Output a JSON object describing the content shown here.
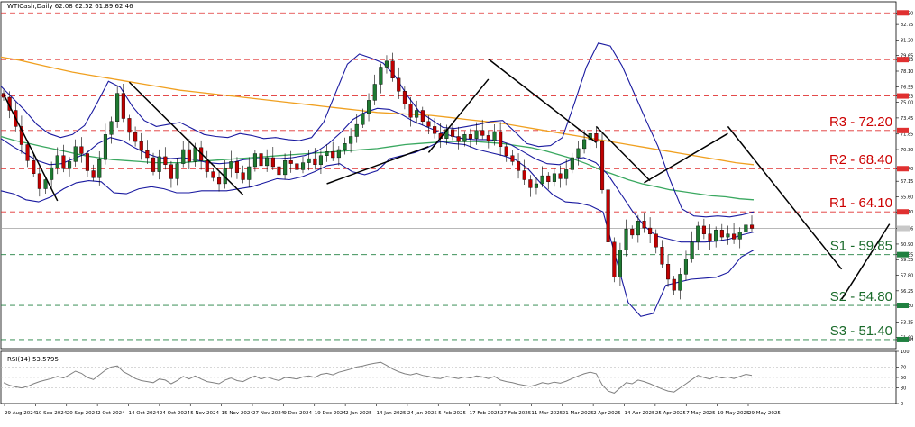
{
  "header": {
    "title": "WTICash,Daily",
    "ohlc": "62.08 62.52 61.89 62.46",
    "indicator": "RSI(14) 53.5795"
  },
  "colors": {
    "price_up": "#1f7a32",
    "price_down": "#c00000",
    "bollinger": "#1a1aa0",
    "ma_green": "#3aa860",
    "ma_orange": "#f0a020",
    "resistance_line": "#e03030",
    "support_line": "#208040",
    "rsi_line": "#808080",
    "trendline": "#000000",
    "last_price_line": "#a0a0a0"
  },
  "chart_data": [
    {
      "type": "candlestick",
      "symbol": "WTICash",
      "timeframe": "Daily",
      "y_axis_ticks": [
        "83.90",
        "82.75",
        "81.20",
        "79.65",
        "79.25",
        "78.10",
        "76.55",
        "75.63",
        "75.00",
        "73.45",
        "71.85",
        "70.30",
        "68.40",
        "67.15",
        "65.60",
        "64.10",
        "62.46",
        "60.90",
        "59.85",
        "59.35",
        "57.80",
        "56.25",
        "54.80",
        "53.15",
        "51.60",
        "51.40"
      ],
      "ylim": [
        50.5,
        85.0
      ],
      "x_tick_labels": [
        "29 Aug 2024",
        "10 Sep 2024",
        "20 Sep 2024",
        "2 Oct 2024",
        "14 Oct 2024",
        "24 Oct 2024",
        "5 Nov 2024",
        "15 Nov 2024",
        "27 Nov 2024",
        "9 Dec 2024",
        "19 Dec 2024",
        "2 Jan 2025",
        "14 Jan 2025",
        "24 Jan 2025",
        "5 Feb 2025",
        "17 Feb 2025",
        "27 Feb 2025",
        "11 Mar 2025",
        "21 Mar 2025",
        "2 Apr 2025",
        "14 Apr 2025",
        "25 Apr 2025",
        "7 May 2025",
        "19 May 2025",
        "29 May 2025"
      ],
      "levels": [
        {
          "label": "R3 - 72.20",
          "value": 72.2,
          "kind": "resistance"
        },
        {
          "label": "R2 - 68.40",
          "value": 68.4,
          "kind": "resistance"
        },
        {
          "label": "R1 - 64.10",
          "value": 64.1,
          "kind": "resistance"
        },
        {
          "label": "S1 - 59.85",
          "value": 59.85,
          "kind": "support"
        },
        {
          "label": "S2 - 54.80",
          "value": 54.8,
          "kind": "support"
        },
        {
          "label": "S3 - 51.40",
          "value": 51.4,
          "kind": "support"
        }
      ],
      "extra_dashed_levels": [
        83.9,
        79.25,
        75.63
      ],
      "last_price": 62.46,
      "close_series": [
        75.5,
        74.2,
        72.6,
        70.8,
        69.2,
        67.9,
        66.4,
        67.3,
        68.5,
        69.7,
        68.4,
        69.1,
        70.6,
        69.9,
        68.2,
        67.5,
        69.3,
        71.8,
        73.1,
        75.9,
        73.4,
        72.0,
        71.1,
        70.2,
        69.5,
        68.1,
        69.6,
        68.8,
        67.4,
        68.9,
        70.3,
        69.1,
        70.5,
        69.2,
        68.1,
        67.5,
        66.9,
        68.4,
        69.1,
        68.0,
        67.3,
        68.6,
        69.9,
        68.7,
        69.5,
        68.6,
        67.8,
        69.2,
        68.9,
        68.3,
        69.0,
        69.4,
        68.8,
        69.7,
        70.1,
        69.5,
        70.3,
        70.9,
        71.6,
        72.8,
        73.9,
        75.2,
        76.8,
        78.5,
        79.1,
        77.4,
        76.1,
        74.8,
        73.5,
        74.2,
        73.1,
        72.6,
        71.9,
        71.4,
        72.3,
        71.6,
        71.1,
        71.8,
        71.4,
        72.2,
        71.7,
        71.2,
        72.1,
        70.6,
        69.7,
        69.1,
        68.2,
        67.3,
        66.5,
        66.9,
        67.7,
        67.1,
        67.9,
        67.4,
        68.3,
        69.5,
        70.4,
        71.3,
        71.9,
        71.1,
        66.3,
        61.1,
        57.6,
        60.3,
        62.4,
        61.8,
        63.2,
        62.5,
        61.9,
        60.6,
        58.9,
        57.4,
        56.3,
        57.9,
        59.4,
        61.1,
        62.7,
        61.9,
        61.2,
        62.3,
        61.6,
        61.9,
        61.4,
        62.1,
        62.8,
        62.46
      ],
      "sma_green_series": [
        71.6,
        71.2,
        70.9,
        70.6,
        70.3,
        70.0,
        69.7,
        69.5,
        69.3,
        69.2,
        69.1,
        69.0,
        69.0,
        69.0,
        69.1,
        69.2,
        69.3,
        69.4,
        69.5,
        69.6,
        69.7,
        69.8,
        69.9,
        70.0,
        70.1,
        70.2,
        70.3,
        70.4,
        70.6,
        70.8,
        70.9,
        71.0,
        71.1,
        71.1,
        71.1,
        71.0,
        70.9,
        70.7,
        70.5,
        70.2,
        69.8,
        69.4,
        68.9,
        68.3,
        67.8,
        67.3,
        66.9,
        66.6,
        66.3,
        66.1,
        65.9,
        65.7,
        65.6,
        65.4,
        65.3
      ],
      "sma_orange_series": [
        79.5,
        79.2,
        78.8,
        78.4,
        78.0,
        77.7,
        77.4,
        77.1,
        76.8,
        76.5,
        76.2,
        76.0,
        75.8,
        75.6,
        75.4,
        75.2,
        75.0,
        74.8,
        74.6,
        74.4,
        74.2,
        74.0,
        73.9,
        73.8,
        73.7,
        73.5,
        73.3,
        73.1,
        72.9,
        72.6,
        72.3,
        72.0,
        71.7,
        71.4,
        71.1,
        70.8,
        70.5,
        70.2,
        69.9,
        69.6,
        69.3,
        69.0,
        68.8
      ],
      "bollinger_upper_series": [
        76.6,
        75.4,
        74.2,
        72.8,
        71.9,
        71.5,
        71.8,
        72.7,
        74.8,
        77.1,
        76.5,
        74.6,
        73.2,
        72.6,
        72.8,
        73.0,
        72.4,
        71.8,
        71.6,
        71.5,
        71.9,
        71.7,
        71.4,
        71.5,
        71.3,
        71.2,
        71.5,
        73.0,
        75.9,
        78.8,
        79.8,
        79.4,
        78.9,
        77.6,
        75.7,
        74.1,
        73.3,
        72.5,
        72.4,
        72.6,
        72.8,
        73.1,
        73.2,
        72.1,
        70.9,
        70.6,
        70.7,
        71.5,
        74.9,
        78.5,
        80.9,
        80.6,
        78.6,
        75.9,
        73.2,
        70.6,
        67.3,
        64.4,
        63.7,
        63.6,
        63.7,
        63.6,
        63.8,
        64.1
      ],
      "bollinger_mid_series": [
        71.4,
        70.6,
        69.9,
        69.2,
        68.8,
        68.9,
        69.4,
        69.9,
        70.9,
        71.5,
        71.2,
        70.5,
        69.9,
        69.5,
        69.4,
        69.5,
        69.3,
        69.0,
        68.9,
        69.0,
        69.3,
        69.4,
        69.4,
        69.4,
        69.5,
        69.7,
        70.1,
        70.9,
        72.0,
        73.3,
        74.0,
        74.4,
        74.3,
        73.8,
        73.1,
        72.6,
        72.1,
        71.7,
        71.4,
        71.3,
        71.3,
        71.2,
        70.8,
        70.1,
        69.4,
        68.9,
        68.8,
        69.3,
        69.5,
        69.0,
        67.8,
        66.0,
        64.2,
        62.7,
        61.7,
        61.4,
        61.1,
        61.1,
        61.1,
        61.2,
        61.4,
        61.8,
        62.1
      ],
      "bollinger_lower_series": [
        66.2,
        65.9,
        65.3,
        65.1,
        65.6,
        66.4,
        67.0,
        67.2,
        67.1,
        66.0,
        65.9,
        66.4,
        66.6,
        66.4,
        66.0,
        66.0,
        66.2,
        66.2,
        66.2,
        66.4,
        66.6,
        67.0,
        67.4,
        67.3,
        67.6,
        68.1,
        68.7,
        68.9,
        68.1,
        67.8,
        68.2,
        69.4,
        69.7,
        70.0,
        70.5,
        71.1,
        70.9,
        70.8,
        70.3,
        70.0,
        69.7,
        69.3,
        68.4,
        67.0,
        65.8,
        65.1,
        65.0,
        64.7,
        64.1,
        59.6,
        55.1,
        53.7,
        54.0,
        56.8,
        57.1,
        57.4,
        57.5,
        57.6,
        58.1,
        59.6,
        60.3
      ],
      "rsi_panel": {
        "name": "RSI(14)",
        "last": 53.5795,
        "ticks": [
          100,
          70,
          50,
          30,
          0
        ],
        "ylim": [
          0,
          100
        ],
        "values": [
          40,
          35,
          32,
          30,
          33,
          38,
          42,
          45,
          48,
          52,
          49,
          55,
          62,
          58,
          50,
          46,
          55,
          64,
          70,
          72,
          61,
          55,
          48,
          44,
          42,
          40,
          47,
          45,
          38,
          44,
          52,
          47,
          53,
          47,
          42,
          40,
          38,
          45,
          49,
          44,
          42,
          48,
          53,
          47,
          51,
          47,
          44,
          50,
          49,
          47,
          51,
          53,
          50,
          56,
          58,
          55,
          60,
          63,
          66,
          70,
          72,
          75,
          77,
          79,
          73,
          66,
          61,
          57,
          55,
          58,
          54,
          52,
          49,
          48,
          52,
          50,
          48,
          51,
          49,
          53,
          51,
          48,
          52,
          45,
          42,
          40,
          37,
          35,
          33,
          36,
          40,
          38,
          41,
          39,
          43,
          48,
          53,
          57,
          60,
          57,
          36,
          24,
          20,
          30,
          40,
          38,
          45,
          42,
          38,
          33,
          28,
          24,
          22,
          30,
          38,
          46,
          54,
          50,
          47,
          52,
          49,
          51,
          48,
          52,
          56,
          54
        ]
      }
    }
  ]
}
